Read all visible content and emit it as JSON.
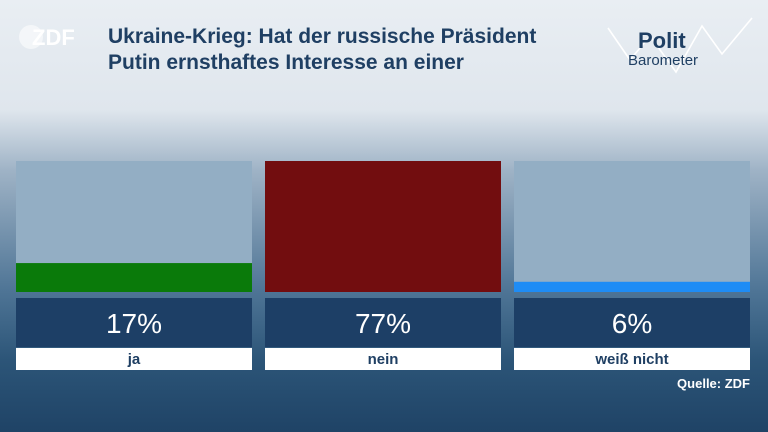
{
  "header": {
    "broadcaster": "ZDF",
    "title_line1": "Ukraine-Krieg: Hat der russische Präsident",
    "title_line2": "Putin ernsthaftes Interesse an einer",
    "brand_word1": "Polit",
    "brand_word2": "Barometer"
  },
  "colors": {
    "title": "#1f3f63",
    "bar_bg": "#93aec4",
    "value_panel": "#1d3f66",
    "label_bg": "#ffffff",
    "ja": "#0a7a0a",
    "nein": "#720d0f",
    "weiss_nicht": "#1e8cf5"
  },
  "chart_data": {
    "type": "bar",
    "categories": [
      "ja",
      "nein",
      "weiß nicht"
    ],
    "values": [
      17,
      77,
      6
    ],
    "value_labels": [
      "17%",
      "77%",
      "6%"
    ],
    "ylim": [
      0,
      77
    ],
    "colors": [
      "#0a7a0a",
      "#720d0f",
      "#1e8cf5"
    ],
    "title": "Ukraine-Krieg: Hat der russische Präsident Putin ernsthaftes Interesse an einer",
    "xlabel": "",
    "ylabel": ""
  },
  "footer": {
    "source": "Quelle: ZDF"
  }
}
